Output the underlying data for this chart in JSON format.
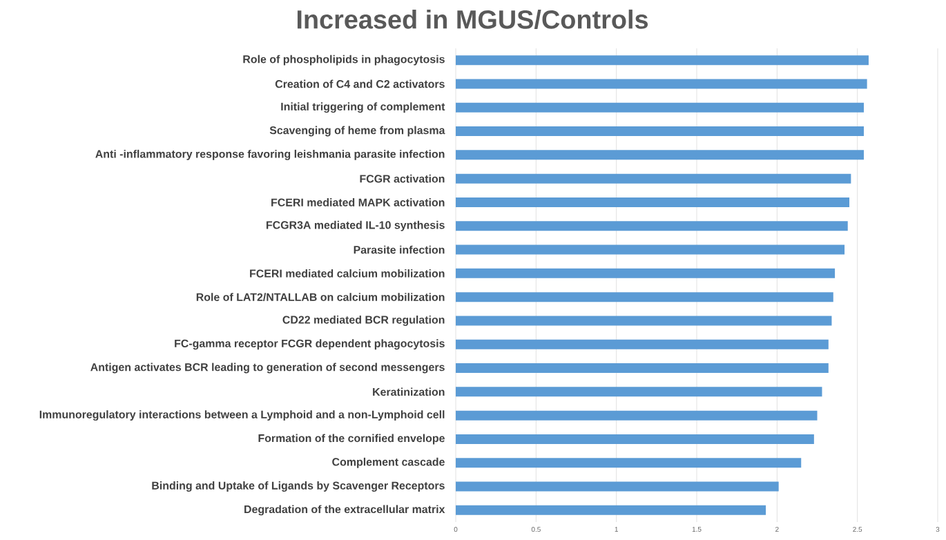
{
  "chart_data": {
    "type": "bar",
    "orientation": "horizontal",
    "title": "Increased in MGUS/Controls",
    "categories": [
      "Role of phospholipids in phagocytosis",
      "Creation of C4 and C2 activators",
      "Initial triggering of complement",
      "Scavenging of heme from plasma",
      "Anti -inflammatory response favoring leishmania parasite infection",
      "FCGR activation",
      "FCERI mediated MAPK activation",
      "FCGR3A mediated IL-10 synthesis",
      "Parasite infection",
      "FCERI mediated calcium mobilization",
      "Role of LAT2/NTALLAB on calcium mobilization",
      "CD22 mediated BCR regulation",
      "FC-gamma receptor FCGR dependent phagocytosis",
      "Antigen activates BCR leading to generation of second messengers",
      "Keratinization",
      "Immunoregulatory interactions between a Lymphoid and a non-Lymphoid cell",
      "Formation of the cornified envelope",
      "Complement cascade",
      "Binding and Uptake of Ligands by Scavenger Receptors",
      "Degradation of the extracellular matrix"
    ],
    "values": [
      2.57,
      2.56,
      2.54,
      2.54,
      2.54,
      2.46,
      2.45,
      2.44,
      2.42,
      2.36,
      2.35,
      2.34,
      2.32,
      2.32,
      2.28,
      2.25,
      2.23,
      2.15,
      2.01,
      1.93
    ],
    "color": "#5b9bd5",
    "xlim": [
      0,
      3
    ],
    "xticks": [
      0,
      0.5,
      1,
      1.5,
      2,
      2.5,
      3
    ],
    "grid": "x"
  }
}
